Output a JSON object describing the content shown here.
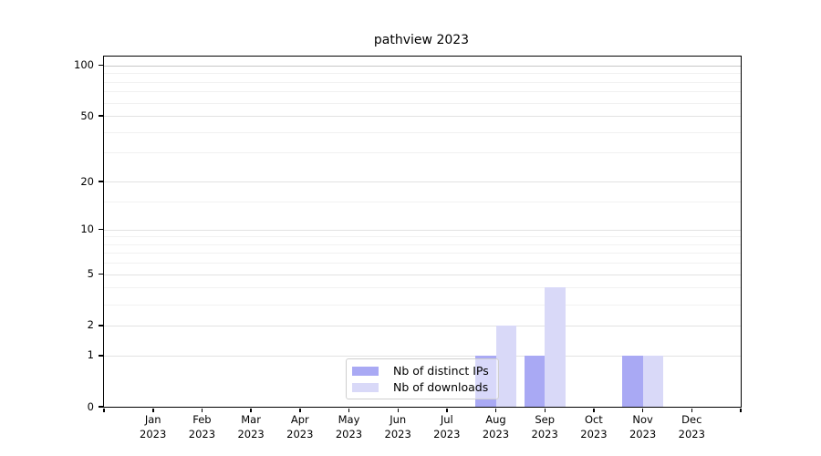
{
  "title": "pathview 2023",
  "chart_data": {
    "type": "bar",
    "title": "pathview 2023",
    "x_months": [
      "Jan",
      "Feb",
      "Mar",
      "Apr",
      "May",
      "Jun",
      "Jul",
      "Aug",
      "Sep",
      "Oct",
      "Nov",
      "Dec"
    ],
    "x_year": "2023",
    "series": [
      {
        "name": "Nb of distinct IPs",
        "color": "#a9a9f4",
        "values": [
          0,
          0,
          0,
          0,
          0,
          0,
          0,
          1,
          1,
          0,
          1,
          0
        ]
      },
      {
        "name": "Nb of downloads",
        "color": "#d9d9f8",
        "values": [
          0,
          0,
          0,
          0,
          0,
          0,
          0,
          2,
          4,
          0,
          1,
          0
        ]
      }
    ],
    "y_scale": "log10(1+v)",
    "y_axis_ticks": [
      0,
      1,
      2,
      5,
      10,
      20,
      50,
      100
    ],
    "y_minor_gridlines": [
      3,
      4,
      6,
      7,
      8,
      9,
      15,
      30,
      40,
      60,
      70,
      80,
      90
    ],
    "ylim": [
      0,
      112.7
    ],
    "grid": true,
    "legend_position": "lower center",
    "colors": {
      "axis": "#000000",
      "major_grid": "#e2e2e2",
      "minor_grid": "#f1f1f1",
      "grid_at_100": "#c8c8c8"
    }
  }
}
